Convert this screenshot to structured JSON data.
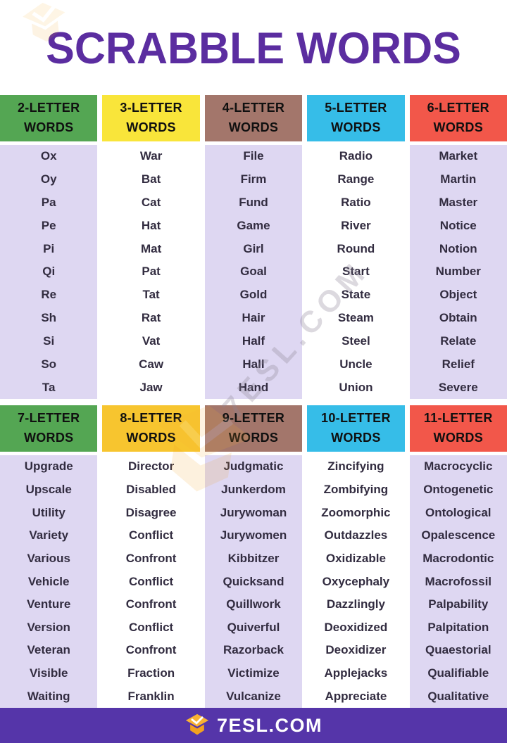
{
  "title": "SCRABBLE WORDS",
  "words_label": "WORDS",
  "watermark": {
    "text": "7ESL.COM",
    "logo": "7esl-cube-logo"
  },
  "footer": {
    "brand": "7ESL.COM",
    "logo": "7esl-cube-logo"
  },
  "colors": {
    "title": "#5b2da0",
    "footer": "#5535a9",
    "green": "#54a653",
    "yellow": "#f9e53a",
    "amber": "#f7c52f",
    "brown": "#a3766b",
    "blue": "#36bde8",
    "red": "#f2574a",
    "lavender": "#ded7f2",
    "white": "#ffffff",
    "logo_orange": "#f9b233",
    "logo_orange_dark": "#f2a21f"
  },
  "sections": [
    {
      "columns": [
        {
          "label": "2-LETTER",
          "color": "green",
          "body": "lavender",
          "words": [
            "Ox",
            "Oy",
            "Pa",
            "Pe",
            "Pi",
            "Qi",
            "Re",
            "Sh",
            "Si",
            "So",
            "Ta"
          ]
        },
        {
          "label": "3-LETTER",
          "color": "yellow",
          "body": "white",
          "words": [
            "War",
            "Bat",
            "Cat",
            "Hat",
            "Mat",
            "Pat",
            "Tat",
            "Rat",
            "Vat",
            "Caw",
            "Jaw"
          ]
        },
        {
          "label": "4-LETTER",
          "color": "brown",
          "body": "lavender",
          "words": [
            "File",
            "Firm",
            "Fund",
            "Game",
            "Girl",
            "Goal",
            "Gold",
            "Hair",
            "Half",
            "Hall",
            "Hand"
          ]
        },
        {
          "label": "5-LETTER",
          "color": "blue",
          "body": "white",
          "words": [
            "Radio",
            "Range",
            "Ratio",
            "River",
            "Round",
            "Start",
            "State",
            "Steam",
            "Steel",
            "Uncle",
            "Union"
          ]
        },
        {
          "label": "6-LETTER",
          "color": "red",
          "body": "lavender",
          "words": [
            "Market",
            "Martin",
            "Master",
            "Notice",
            "Notion",
            "Number",
            "Object",
            "Obtain",
            "Relate",
            "Relief",
            "Severe"
          ]
        }
      ]
    },
    {
      "columns": [
        {
          "label": "7-LETTER",
          "color": "green",
          "body": "lavender",
          "words": [
            "Upgrade",
            "Upscale",
            "Utility",
            "Variety",
            "Various",
            "Vehicle",
            "Venture",
            "Version",
            "Veteran",
            "Visible",
            "Waiting"
          ]
        },
        {
          "label": "8-LETTER",
          "color": "amber",
          "body": "white",
          "words": [
            "Director",
            "Disabled",
            "Disagree",
            "Conflict",
            "Confront",
            "Conflict",
            "Confront",
            "Conflict",
            "Confront",
            "Fraction",
            "Franklin"
          ]
        },
        {
          "label": "9-LETTER",
          "color": "brown",
          "body": "lavender",
          "words": [
            "Judgmatic",
            "Junkerdom",
            "Jurywoman",
            "Jurywomen",
            "Kibbitzer",
            "Quicksand",
            "Quillwork",
            "Quiverful",
            "Razorback",
            "Victimize",
            "Vulcanize"
          ]
        },
        {
          "label": "10-LETTER",
          "color": "blue",
          "body": "white",
          "words": [
            "Zincifying",
            "Zombifying",
            "Zoomorphic",
            "Outdazzles",
            "Oxidizable",
            "Oxycephaly",
            "Dazzlingly",
            "Deoxidized",
            "Deoxidizer",
            "Applejacks",
            "Appreciate"
          ]
        },
        {
          "label": "11-LETTER",
          "color": "red",
          "body": "lavender",
          "words": [
            "Macrocyclic",
            "Ontogenetic",
            "Ontological",
            "Opalescence",
            "Macrodontic",
            "Macrofossil",
            "Palpability",
            "Palpitation",
            "Quaestorial",
            "Qualifiable",
            "Qualitative"
          ]
        }
      ]
    }
  ]
}
